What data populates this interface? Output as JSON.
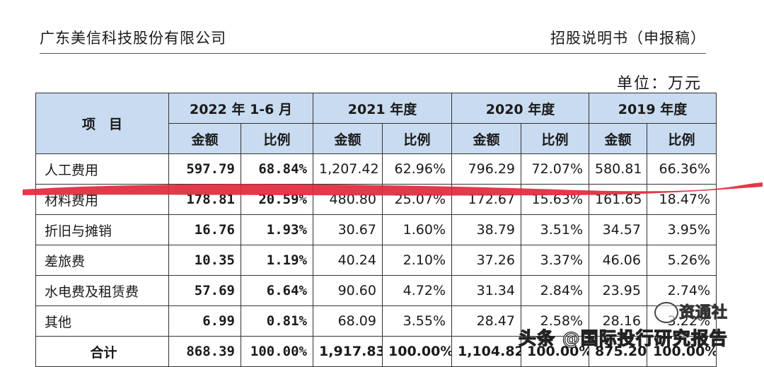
{
  "header": {
    "company": "广东美信科技股份有限公司",
    "doc_title": "招股说明书（申报稿）"
  },
  "unit": "单位：万元",
  "table": {
    "item_header": "项　目",
    "periods": [
      "2022 年 1-6 月",
      "2021 年度",
      "2020 年度",
      "2019 年度"
    ],
    "sub_headers": [
      "金额",
      "比例",
      "金额",
      "比例",
      "金额",
      "比例",
      "金额",
      "比例"
    ],
    "rows": [
      {
        "name": "人工费用",
        "values": [
          "597.79",
          "68.84%",
          "1,207.42",
          "62.96%",
          "796.29",
          "72.07%",
          "580.81",
          "66.36%"
        ]
      },
      {
        "name": "材料费用",
        "values": [
          "178.81",
          "20.59%",
          "480.80",
          "25.07%",
          "172.67",
          "15.63%",
          "161.65",
          "18.47%"
        ]
      },
      {
        "name": "折旧与摊销",
        "values": [
          "16.76",
          "1.93%",
          "30.67",
          "1.60%",
          "38.79",
          "3.51%",
          "34.57",
          "3.95%"
        ]
      },
      {
        "name": "差旅费",
        "values": [
          "10.35",
          "1.19%",
          "40.24",
          "2.10%",
          "37.26",
          "3.37%",
          "46.06",
          "5.26%"
        ]
      },
      {
        "name": "水电费及租赁费",
        "values": [
          "57.69",
          "6.64%",
          "90.60",
          "4.72%",
          "31.34",
          "2.84%",
          "23.95",
          "2.74%"
        ]
      },
      {
        "name": "其他",
        "values": [
          "6.99",
          "0.81%",
          "68.09",
          "3.55%",
          "28.47",
          "2.58%",
          "28.16",
          "3.22%"
        ]
      }
    ],
    "total": {
      "name": "合计",
      "values": [
        "868.39",
        "100.00%",
        "1,917.83",
        "100.00%",
        "1,104.82",
        "100.00%",
        "875.20",
        "100.00%"
      ]
    }
  },
  "watermarks": {
    "top": "资通社",
    "bottom": "头条 @国际投行研究报告"
  },
  "colors": {
    "header_fill": "#c9dbf0",
    "highlight_stroke": "#e0283c"
  }
}
